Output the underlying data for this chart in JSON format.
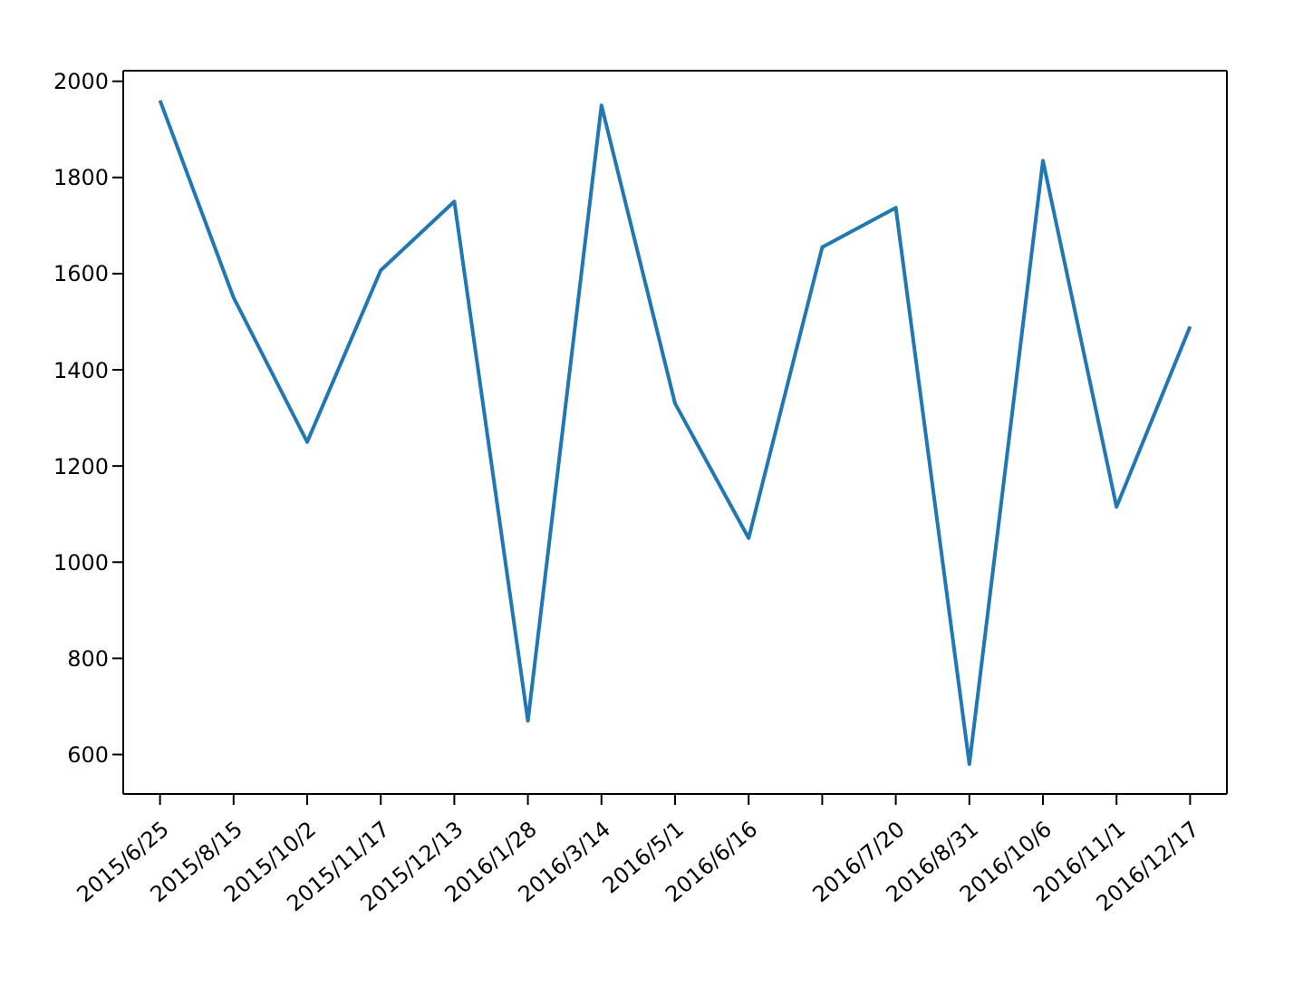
{
  "chart_data": {
    "type": "line",
    "categories": [
      "2015/6/25",
      "2015/8/15",
      "2015/10/2",
      "2015/11/17",
      "2015/12/13",
      "2016/1/28",
      "2016/3/14",
      "2016/5/1",
      "2016/6/16",
      null,
      "2016/7/20",
      "2016/8/31",
      "2016/10/6",
      "2016/11/1",
      "2016/12/17"
    ],
    "series": [
      {
        "color": "#1f77b4",
        "values": [
          1960,
          1550,
          1250,
          1607,
          1750,
          670,
          1950,
          1330,
          1050,
          1655,
          1737,
          580,
          1835,
          1115,
          1490
        ]
      }
    ],
    "ylim": [
      518,
      2022
    ],
    "yticks": [
      600,
      800,
      1000,
      1200,
      1400,
      1600,
      1800,
      2000
    ],
    "grid": false,
    "legend": false,
    "marker": "none",
    "line_style": "solid"
  }
}
